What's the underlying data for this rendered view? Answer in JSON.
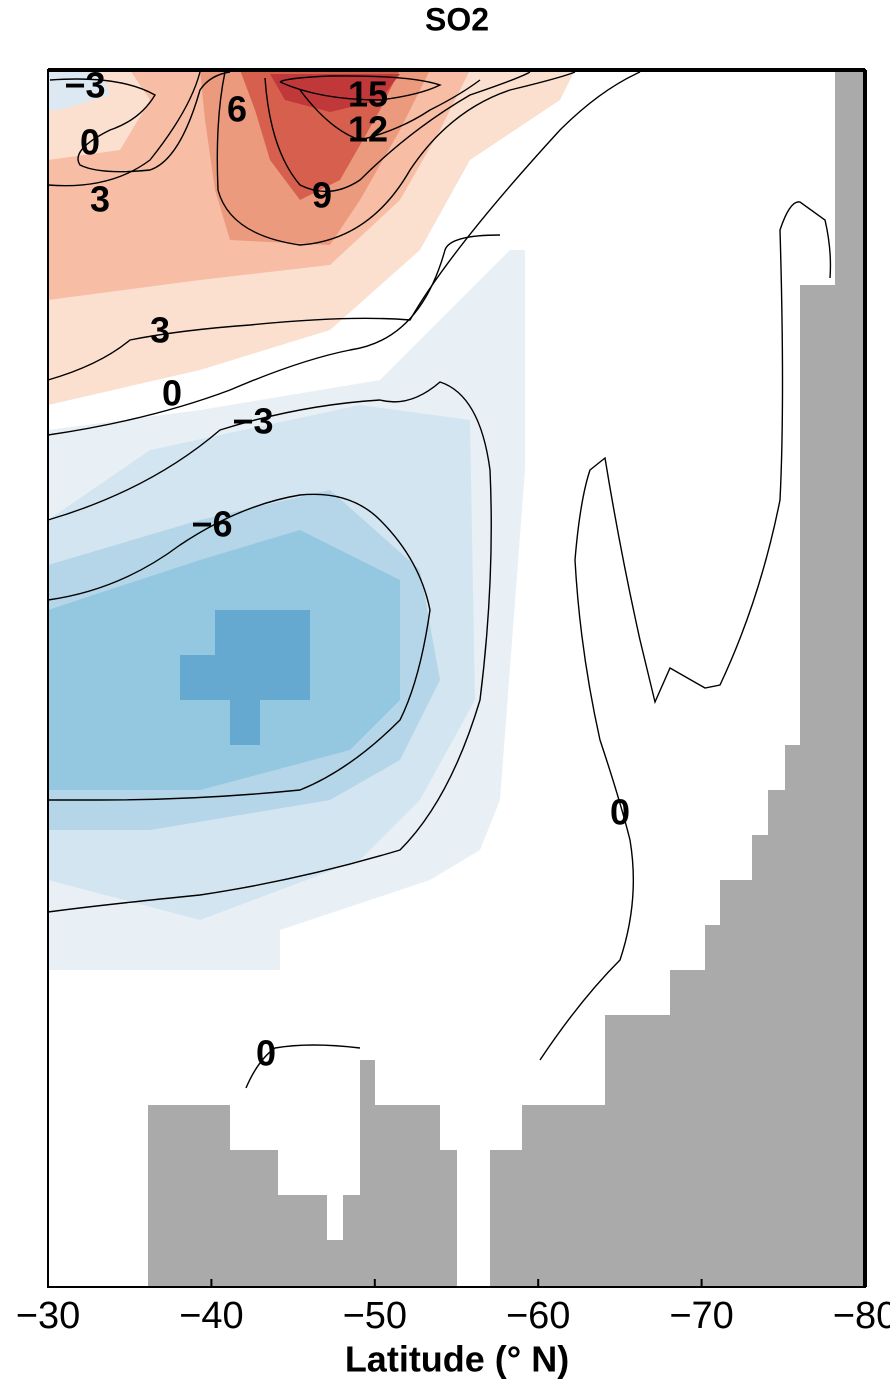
{
  "chart_data": {
    "type": "contour",
    "title": "SO2",
    "x_label": "Latitude (° N)",
    "xlim": [
      -30,
      -80
    ],
    "xticks": [
      {
        "value": -30,
        "label": "−30"
      },
      {
        "value": -40,
        "label": "−40"
      },
      {
        "value": -50,
        "label": "−50"
      },
      {
        "value": -60,
        "label": "−60"
      },
      {
        "value": -70,
        "label": "−70"
      },
      {
        "value": -80,
        "label": "−80"
      }
    ],
    "contour_labels": [
      {
        "value": -3,
        "label": "−3"
      },
      0,
      3,
      6,
      15,
      12,
      9,
      3,
      0,
      {
        "value": -3,
        "label": "−3"
      },
      {
        "value": -6,
        "label": "−6"
      },
      0,
      0
    ]
  }
}
